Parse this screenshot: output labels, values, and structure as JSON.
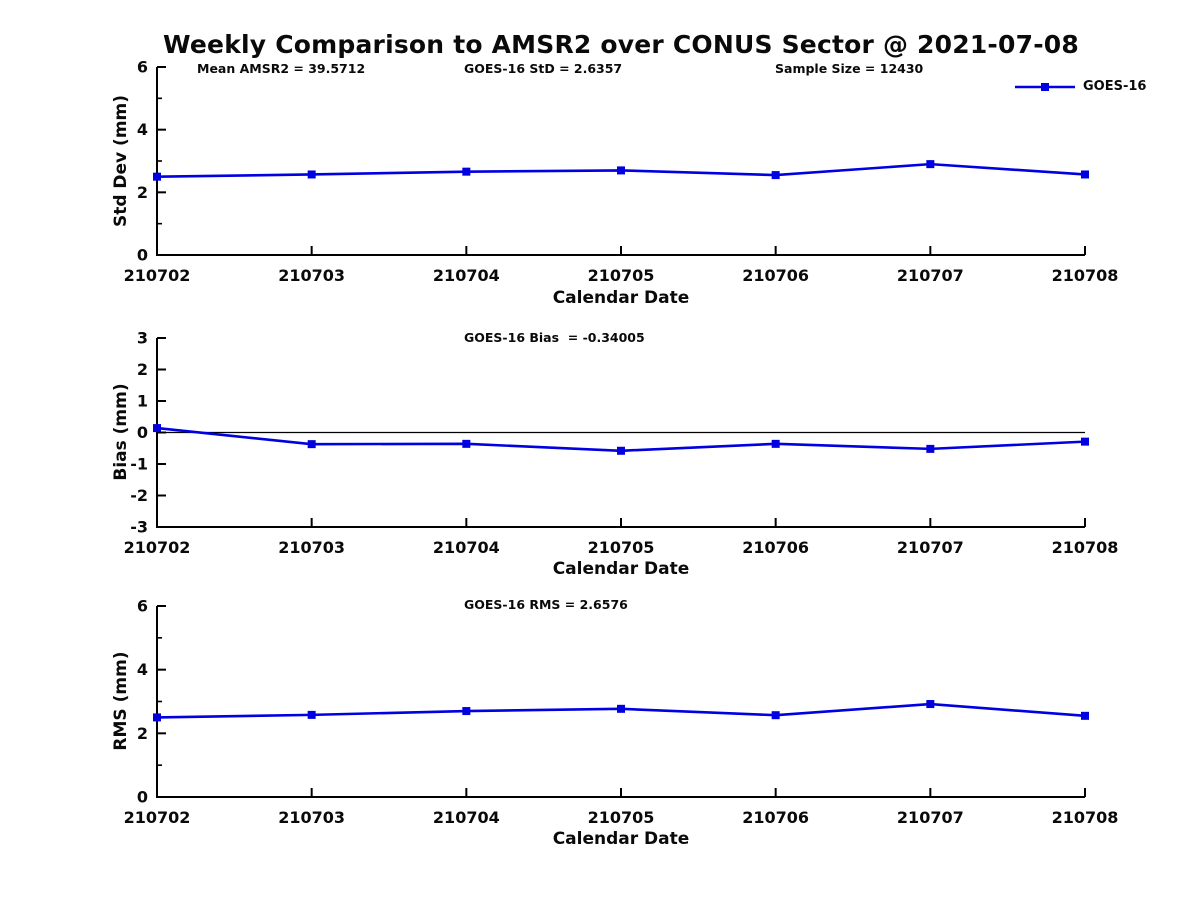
{
  "figure": {
    "title": "Weekly Comparison to AMSR2 over CONUS Sector @ 2021-07-08",
    "legend": {
      "label": "GOES-16",
      "color": "#0000e0",
      "marker": "square"
    },
    "background": "#ffffff",
    "axis_color": "#000000"
  },
  "chart_data": [
    {
      "id": "std-dev",
      "type": "line",
      "categories": [
        "210702",
        "210703",
        "210704",
        "210705",
        "210706",
        "210707",
        "210708"
      ],
      "series": [
        {
          "name": "GOES-16",
          "values": [
            2.5,
            2.57,
            2.66,
            2.7,
            2.55,
            2.9,
            2.57
          ]
        }
      ],
      "annotations": [
        {
          "text": "Mean AMSR2 = 39.5712"
        },
        {
          "text": "GOES-16 StD = 2.6357"
        },
        {
          "text": "Sample Size = 12430"
        }
      ],
      "xlabel": "Calendar Date",
      "ylabel": "Std Dev (mm)",
      "ylim": [
        0,
        6
      ],
      "yticks": [
        0,
        2,
        4,
        6
      ],
      "minor_yticks": [
        1,
        3,
        5
      ],
      "zero_line": false,
      "legend_position": "top-right",
      "grid": false
    },
    {
      "id": "bias",
      "type": "line",
      "categories": [
        "210702",
        "210703",
        "210704",
        "210705",
        "210706",
        "210707",
        "210708"
      ],
      "series": [
        {
          "name": "GOES-16",
          "values": [
            0.14,
            -0.37,
            -0.36,
            -0.58,
            -0.36,
            -0.52,
            -0.29
          ]
        }
      ],
      "annotations": [
        {
          "text": "GOES-16 Bias  = -0.34005"
        }
      ],
      "xlabel": "Calendar Date",
      "ylabel": "Bias (mm)",
      "ylim": [
        -3,
        3
      ],
      "yticks": [
        -3,
        -2,
        -1,
        0,
        1,
        2,
        3
      ],
      "minor_yticks": [],
      "zero_line": true,
      "grid": false
    },
    {
      "id": "rms",
      "type": "line",
      "categories": [
        "210702",
        "210703",
        "210704",
        "210705",
        "210706",
        "210707",
        "210708"
      ],
      "series": [
        {
          "name": "GOES-16",
          "values": [
            2.5,
            2.58,
            2.7,
            2.77,
            2.57,
            2.92,
            2.55
          ]
        }
      ],
      "annotations": [
        {
          "text": "GOES-16 RMS = 2.6576"
        }
      ],
      "xlabel": "Calendar Date",
      "ylabel": "RMS (mm)",
      "ylim": [
        0,
        6
      ],
      "yticks": [
        0,
        2,
        4,
        6
      ],
      "minor_yticks": [
        1,
        3,
        5
      ],
      "zero_line": false,
      "grid": false
    }
  ]
}
